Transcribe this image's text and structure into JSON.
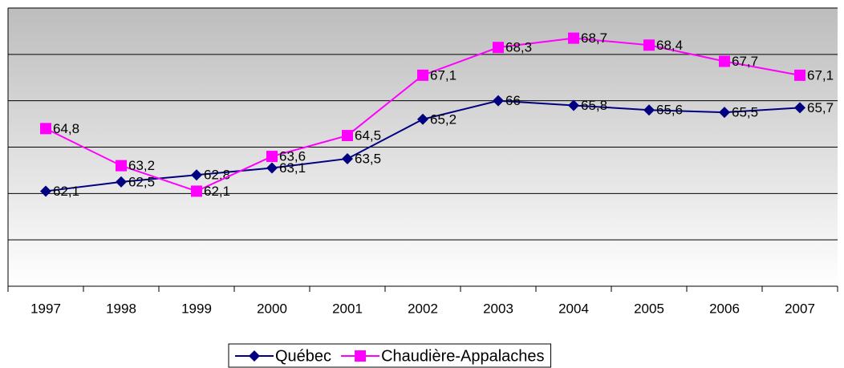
{
  "chart_data": {
    "type": "line",
    "categories": [
      "1997",
      "1998",
      "1999",
      "2000",
      "2001",
      "2002",
      "2003",
      "2004",
      "2005",
      "2006",
      "2007"
    ],
    "series": [
      {
        "name": "Québec",
        "color": "#000080",
        "marker": "diamond",
        "values": [
          62.1,
          62.5,
          62.8,
          63.1,
          63.5,
          65.2,
          66,
          65.8,
          65.6,
          65.5,
          65.7
        ],
        "value_labels": [
          "62,1",
          "62,5",
          "62,8",
          "63,1",
          "63,5",
          "65,2",
          "66",
          "65,8",
          "65,6",
          "65,5",
          "65,7"
        ]
      },
      {
        "name": "Chaudière-Appalaches",
        "color": "#ff00ff",
        "marker": "square",
        "values": [
          64.8,
          63.2,
          62.1,
          63.6,
          64.5,
          67.1,
          68.3,
          68.7,
          68.4,
          67.7,
          67.1
        ],
        "value_labels": [
          "64,8",
          "63,2",
          "62,1",
          "63,6",
          "64,5",
          "67,1",
          "68,3",
          "68,7",
          "68,4",
          "67,7",
          "67,1"
        ]
      }
    ],
    "ylim": [
      58,
      70
    ],
    "yticks": [
      58,
      60,
      62,
      64,
      66,
      68,
      70
    ],
    "grid": true,
    "legend": "bottom"
  }
}
